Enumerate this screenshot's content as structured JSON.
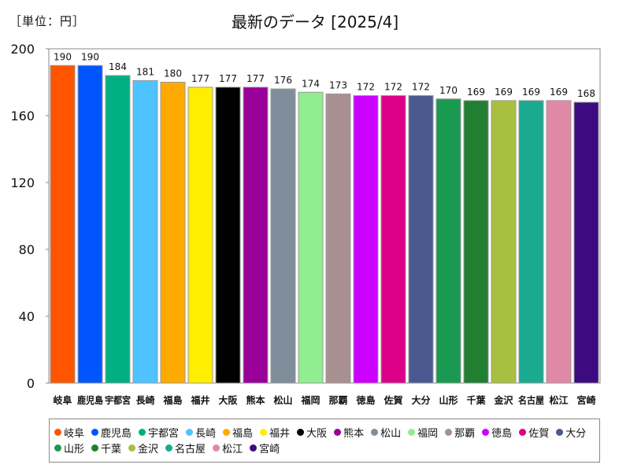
{
  "unit_label": "［単位：円］",
  "chart_data": {
    "type": "bar",
    "title": "最新のデータ [2025/4]",
    "unit": "［単位：円］",
    "xlabel": "",
    "ylabel": "",
    "ylim": [
      0,
      200
    ],
    "yticks": [
      0,
      40,
      80,
      120,
      160,
      200
    ],
    "grid": false,
    "legend_position": "bottom",
    "categories": [
      "岐阜",
      "鹿児島",
      "宇都宮",
      "長崎",
      "福島",
      "福井",
      "大阪",
      "熊本",
      "松山",
      "福岡",
      "那覇",
      "徳島",
      "佐賀",
      "大分",
      "山形",
      "千葉",
      "金沢",
      "名古屋",
      "松江",
      "宮崎"
    ],
    "values": [
      190,
      190,
      184,
      181,
      180,
      177,
      177,
      177,
      176,
      174,
      173,
      172,
      172,
      172,
      170,
      169,
      169,
      169,
      169,
      168
    ],
    "colors": [
      "#ff5500",
      "#0055ff",
      "#00b080",
      "#4fc3ff",
      "#ffaa00",
      "#ffee00",
      "#000000",
      "#990099",
      "#808e9b",
      "#90ee90",
      "#a89090",
      "#cc00ff",
      "#dd0088",
      "#4a5a90",
      "#1a9a50",
      "#207f30",
      "#a9bf40",
      "#1aaa90",
      "#e088a8",
      "#3d0a80"
    ]
  }
}
